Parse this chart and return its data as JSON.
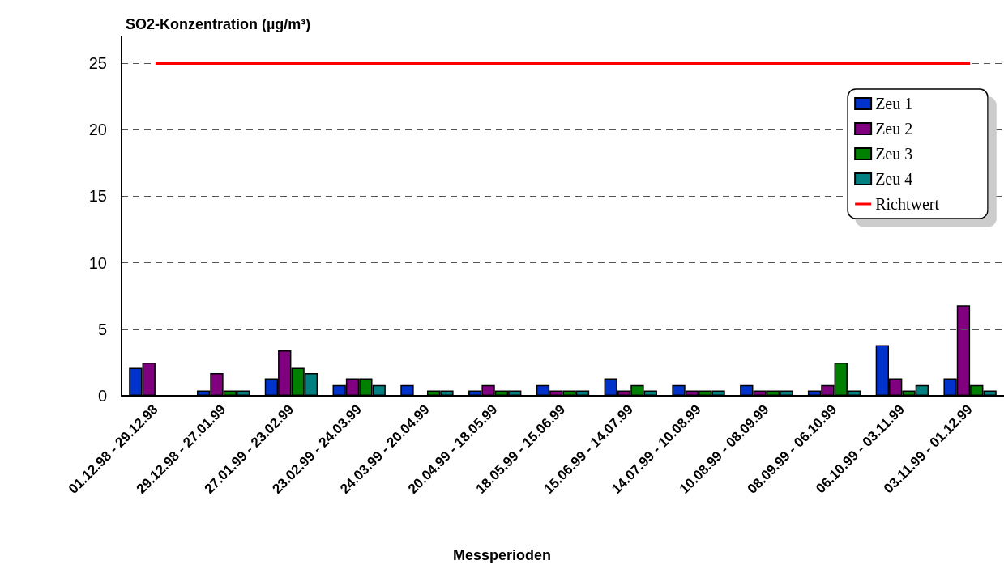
{
  "chart_data": {
    "type": "bar",
    "ylabel": "SO2-Konzentration (µg/m³)",
    "xlabel": "Messperioden",
    "categories": [
      "01.12.98 - 29.12.98",
      "29.12.98 - 27.01.99",
      "27.01.99 - 23.02.99",
      "23.02.99 - 24.03.99",
      "24.03.99 - 20.04.99",
      "20.04.99 - 18.05.99",
      "18.05.99 - 15.06.99",
      "15.06.99 - 14.07.99",
      "14.07.99 - 10.08.99",
      "10.08.99 - 08.09.99",
      "08.09.99 - 06.10.99",
      "06.10.99 - 03.11.99",
      "03.11.99 - 01.12.99"
    ],
    "series": [
      {
        "name": "Zeu 1",
        "color": "#0033cc",
        "values": [
          2.1,
          0.4,
          1.3,
          0.8,
          0.8,
          0.4,
          0.8,
          1.3,
          0.8,
          0.8,
          0.4,
          3.8,
          1.3
        ]
      },
      {
        "name": "Zeu 2",
        "color": "#800080",
        "values": [
          2.5,
          1.7,
          3.4,
          1.3,
          null,
          0.8,
          0.4,
          0.4,
          0.4,
          0.4,
          0.8,
          1.3,
          6.8
        ]
      },
      {
        "name": "Zeu 3",
        "color": "#008000",
        "values": [
          null,
          0.4,
          2.1,
          1.3,
          0.4,
          0.4,
          0.4,
          0.8,
          0.4,
          0.4,
          2.5,
          0.4,
          0.8
        ]
      },
      {
        "name": "Zeu 4",
        "color": "#008080",
        "values": [
          null,
          0.4,
          1.7,
          0.8,
          0.4,
          0.4,
          0.4,
          0.4,
          0.4,
          0.4,
          0.4,
          0.8,
          0.4
        ]
      },
      {
        "name": "Richtwert",
        "type": "line",
        "color": "#ff0000",
        "values": [
          25,
          25,
          25,
          25,
          25,
          25,
          25,
          25,
          25,
          25,
          25,
          25,
          25
        ]
      }
    ],
    "marker": "none",
    "ylim": [
      0,
      27
    ],
    "yticks": [
      0,
      5,
      10,
      15,
      20,
      25
    ],
    "grid": "y",
    "legend": "top right"
  }
}
